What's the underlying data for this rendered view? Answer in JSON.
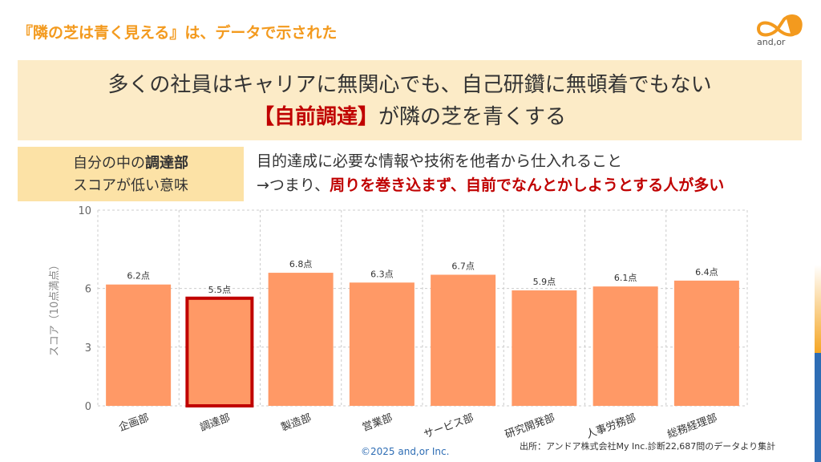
{
  "header": {
    "title": "『隣の芝は青く見える』は、データで示された"
  },
  "logo": {
    "text": "and,or"
  },
  "banner": {
    "line1": "多くの社員はキャリアに無関心でも、自己研鑽に無頓着でもない",
    "line2_highlight": "【自前調達】",
    "line2_rest": "が隣の芝を青くする"
  },
  "dept_box": {
    "line1_prefix": "自分の中の",
    "line1_bold": "調達部",
    "line2": "スコアが低い意味"
  },
  "description": {
    "line1": "目的達成に必要な情報や技術を他者から仕入れること",
    "line2_prefix": "→つまり、",
    "line2_highlight": "周りを巻き込まず、自前でなんとかしようとする人が多い"
  },
  "chart_data": {
    "type": "bar",
    "categories": [
      "企画部",
      "調達部",
      "製造部",
      "営業部",
      "サービス部",
      "研究開発部",
      "人事労務部",
      "総務経理部"
    ],
    "values": [
      6.2,
      5.5,
      6.8,
      6.3,
      6.7,
      5.9,
      6.1,
      6.4
    ],
    "data_labels": [
      "6.2点",
      "5.5点",
      "6.8点",
      "6.3点",
      "6.7点",
      "5.9点",
      "6.1点",
      "6.4点"
    ],
    "highlighted_category": "調達部",
    "ylabel": "スコア（10点満点）",
    "yticks": [
      0,
      3,
      6,
      10
    ],
    "ylim": [
      0,
      10
    ],
    "grid": true,
    "colors": {
      "bar": "#FF9966",
      "highlight_border": "#C00000",
      "grid": "#CCCCCC"
    }
  },
  "footer": {
    "copyright": "©2025 and,or Inc.",
    "source": "出所：アンドア株式会社My Inc.診断22,687問のデータより集計"
  }
}
